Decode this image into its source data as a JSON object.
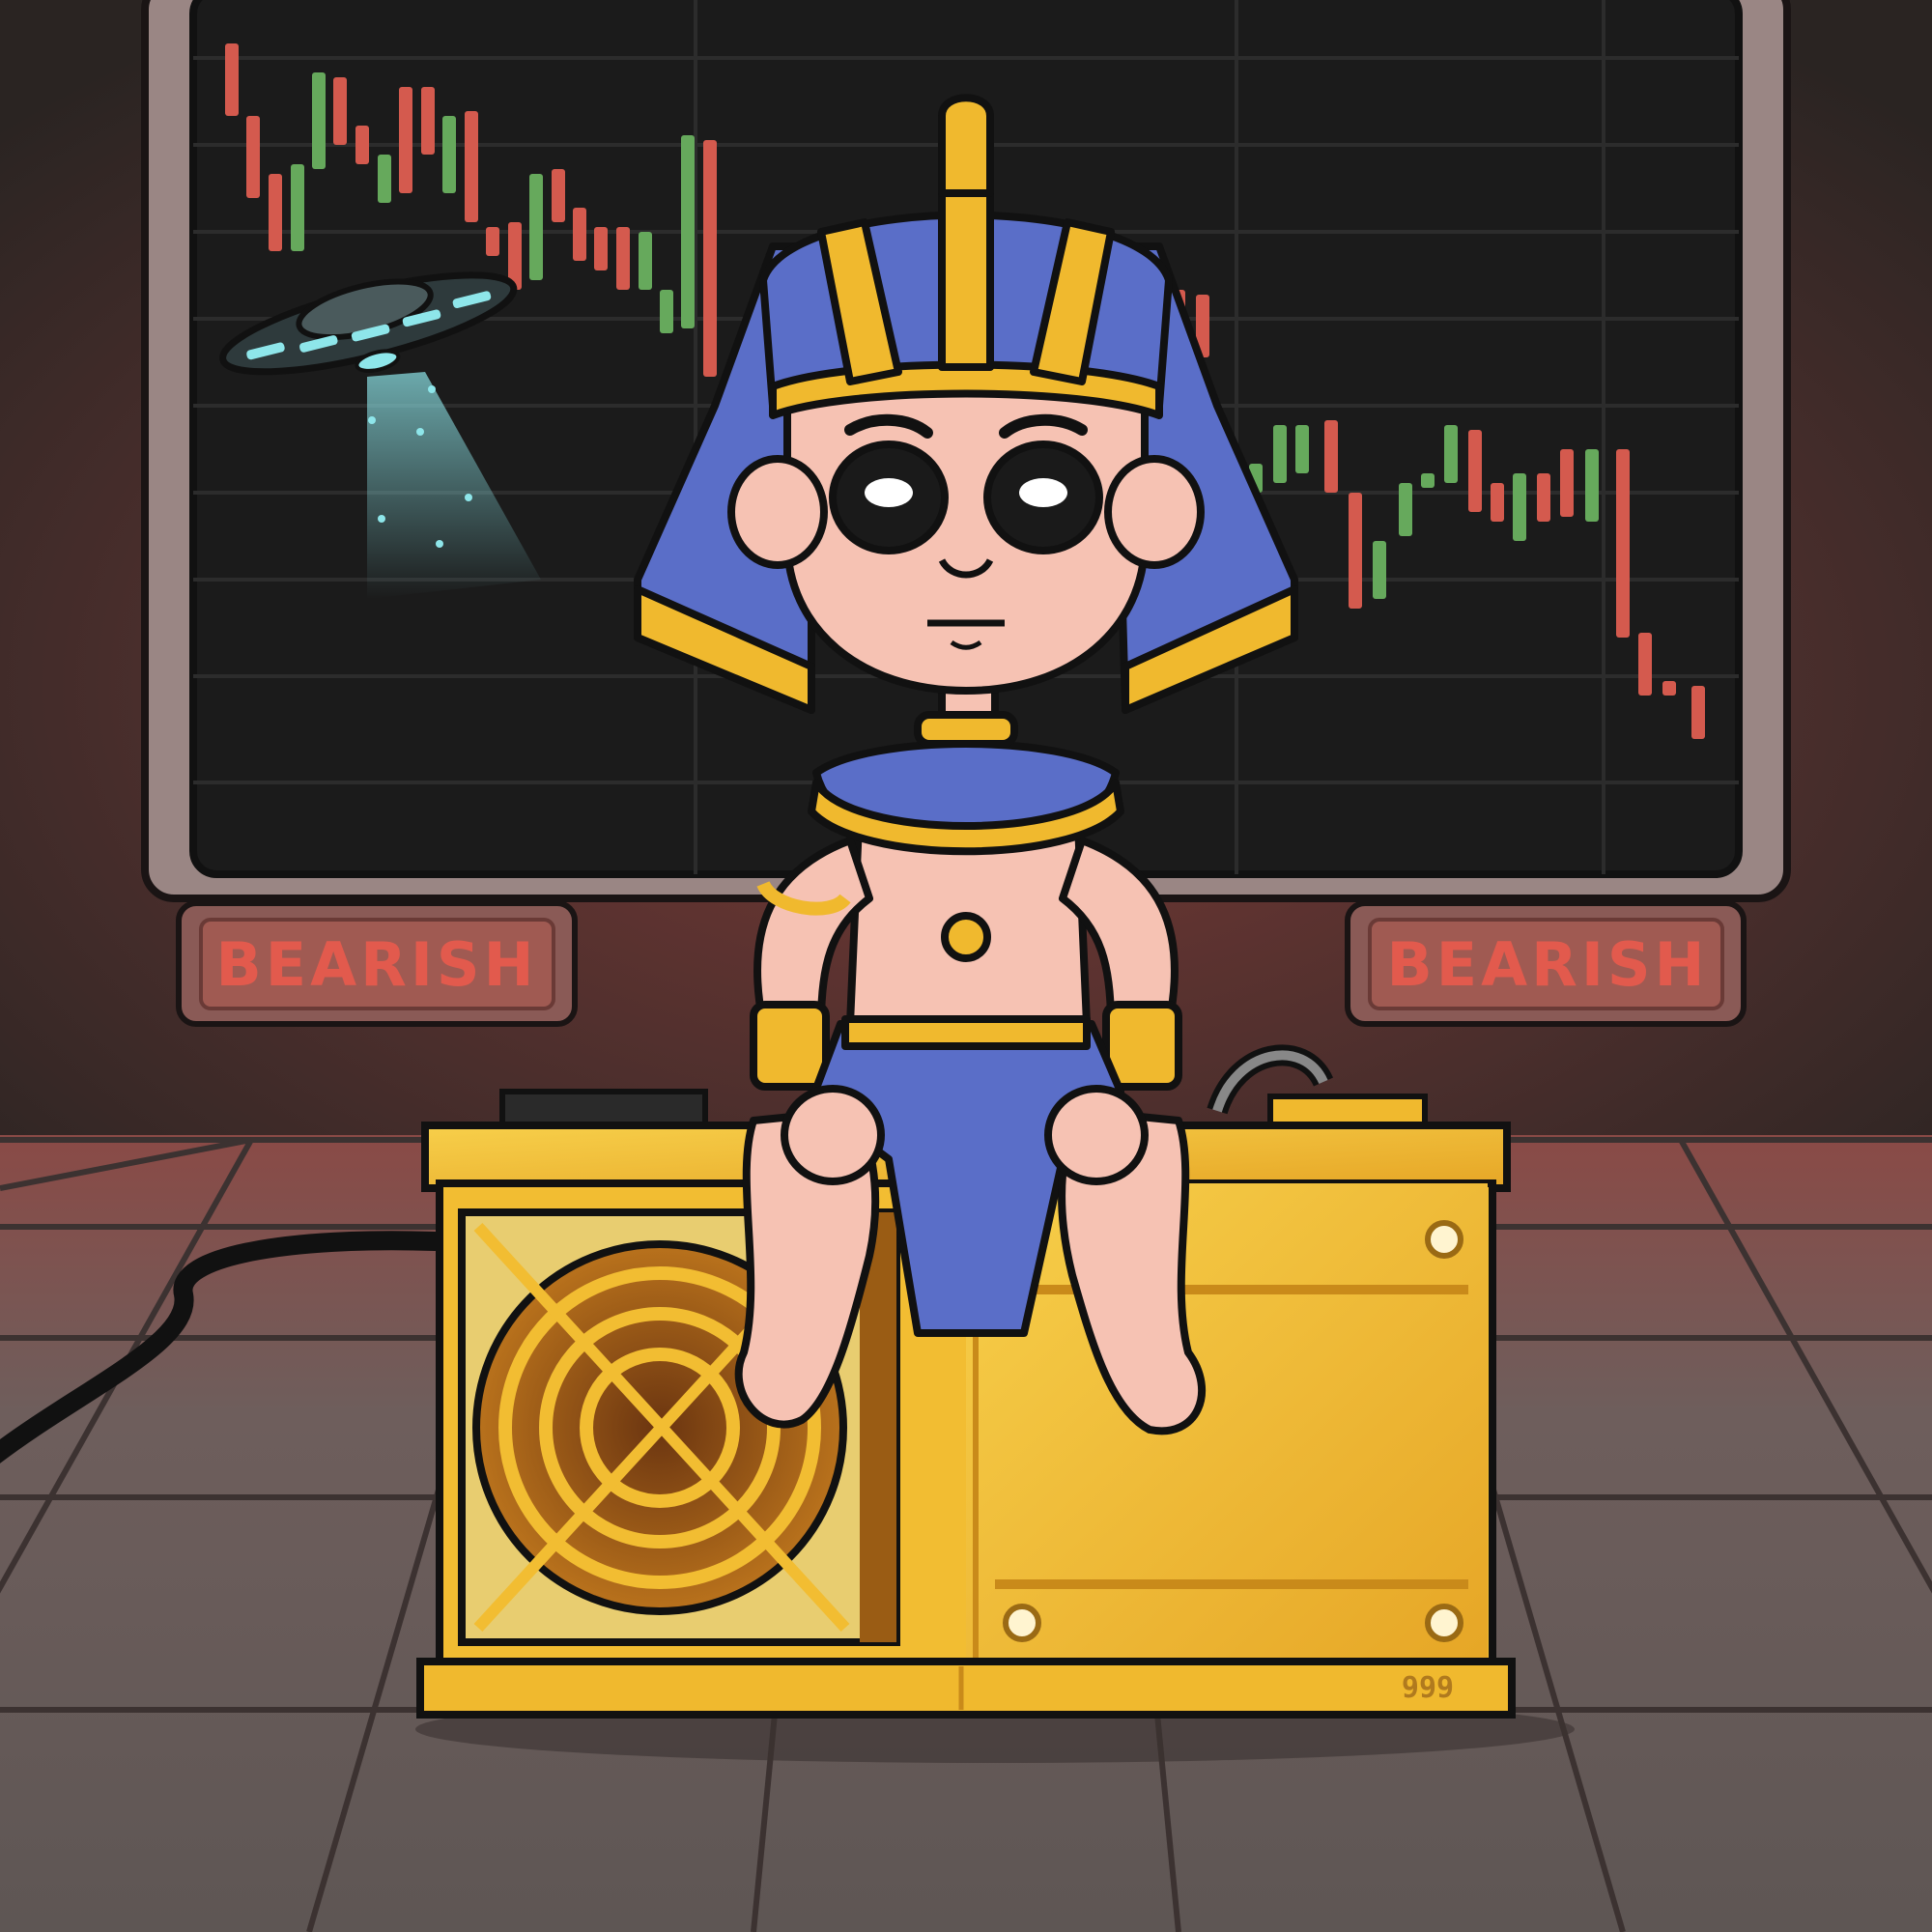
{
  "signs": {
    "left": "BEARISH",
    "right": "BEARISH"
  },
  "miner": {
    "serial": "999"
  },
  "colors": {
    "candle_up": "#66a95c",
    "candle_down": "#d45a4e",
    "screen_bg": "#1b1b1b",
    "sign_glow": "#c04a3f",
    "gold": "#f0b92e",
    "headdress_blue": "#5a6ec8",
    "skin": "#f6c2b3"
  },
  "character": {
    "name_icon": "pharaoh-character"
  }
}
